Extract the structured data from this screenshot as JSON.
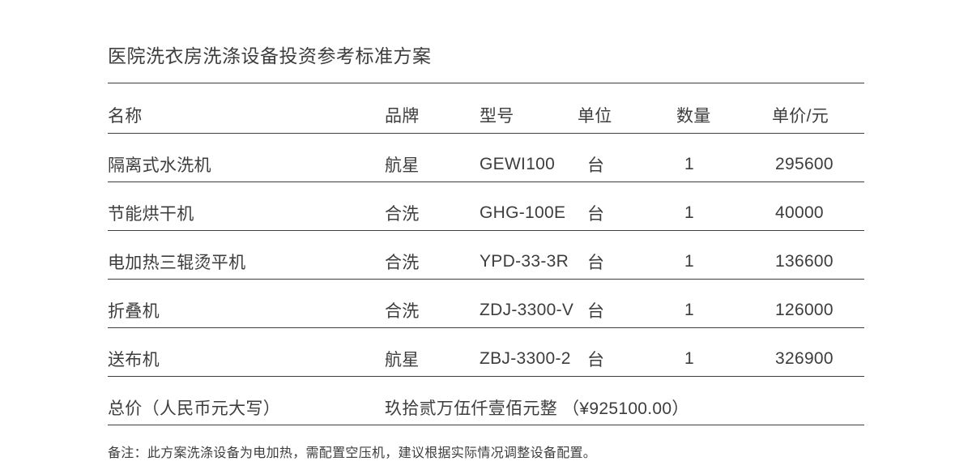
{
  "page": {
    "title": "医院洗衣房洗涤设备投资参考标准方案",
    "note": "备注：此方案洗涤设备为电加热，需配置空压机，建议根据实际情况调整设备配置。"
  },
  "table": {
    "headers": [
      "名称",
      "品牌",
      "型号",
      "单位",
      "数量",
      "单价/元"
    ],
    "rows": [
      {
        "name": "隔离式水洗机",
        "brand": "航星",
        "model": "GEWI100",
        "unit": "台",
        "qty": "1",
        "price": "295600"
      },
      {
        "name": "节能烘干机",
        "brand": "合洗",
        "model": "GHG-100E",
        "unit": "台",
        "qty": "1",
        "price": "40000"
      },
      {
        "name": "电加热三辊烫平机",
        "brand": "合洗",
        "model": "YPD-33-3R",
        "unit": "台",
        "qty": "1",
        "price": "136600"
      },
      {
        "name": "折叠机",
        "brand": "合洗",
        "model": "ZDJ-3300-V",
        "unit": "台",
        "qty": "1",
        "price": "126000"
      },
      {
        "name": "送布机",
        "brand": "航星",
        "model": "ZBJ-3300-2",
        "unit": "台",
        "qty": "1",
        "price": "326900"
      }
    ],
    "total": {
      "label": "总价（人民币元大写）",
      "amount": "玖拾贰万伍仟壹佰元整 （¥925100.00）"
    }
  },
  "colors": {
    "text": "#3d3d3d",
    "line": "#3d3d3d",
    "background": "#ffffff"
  }
}
